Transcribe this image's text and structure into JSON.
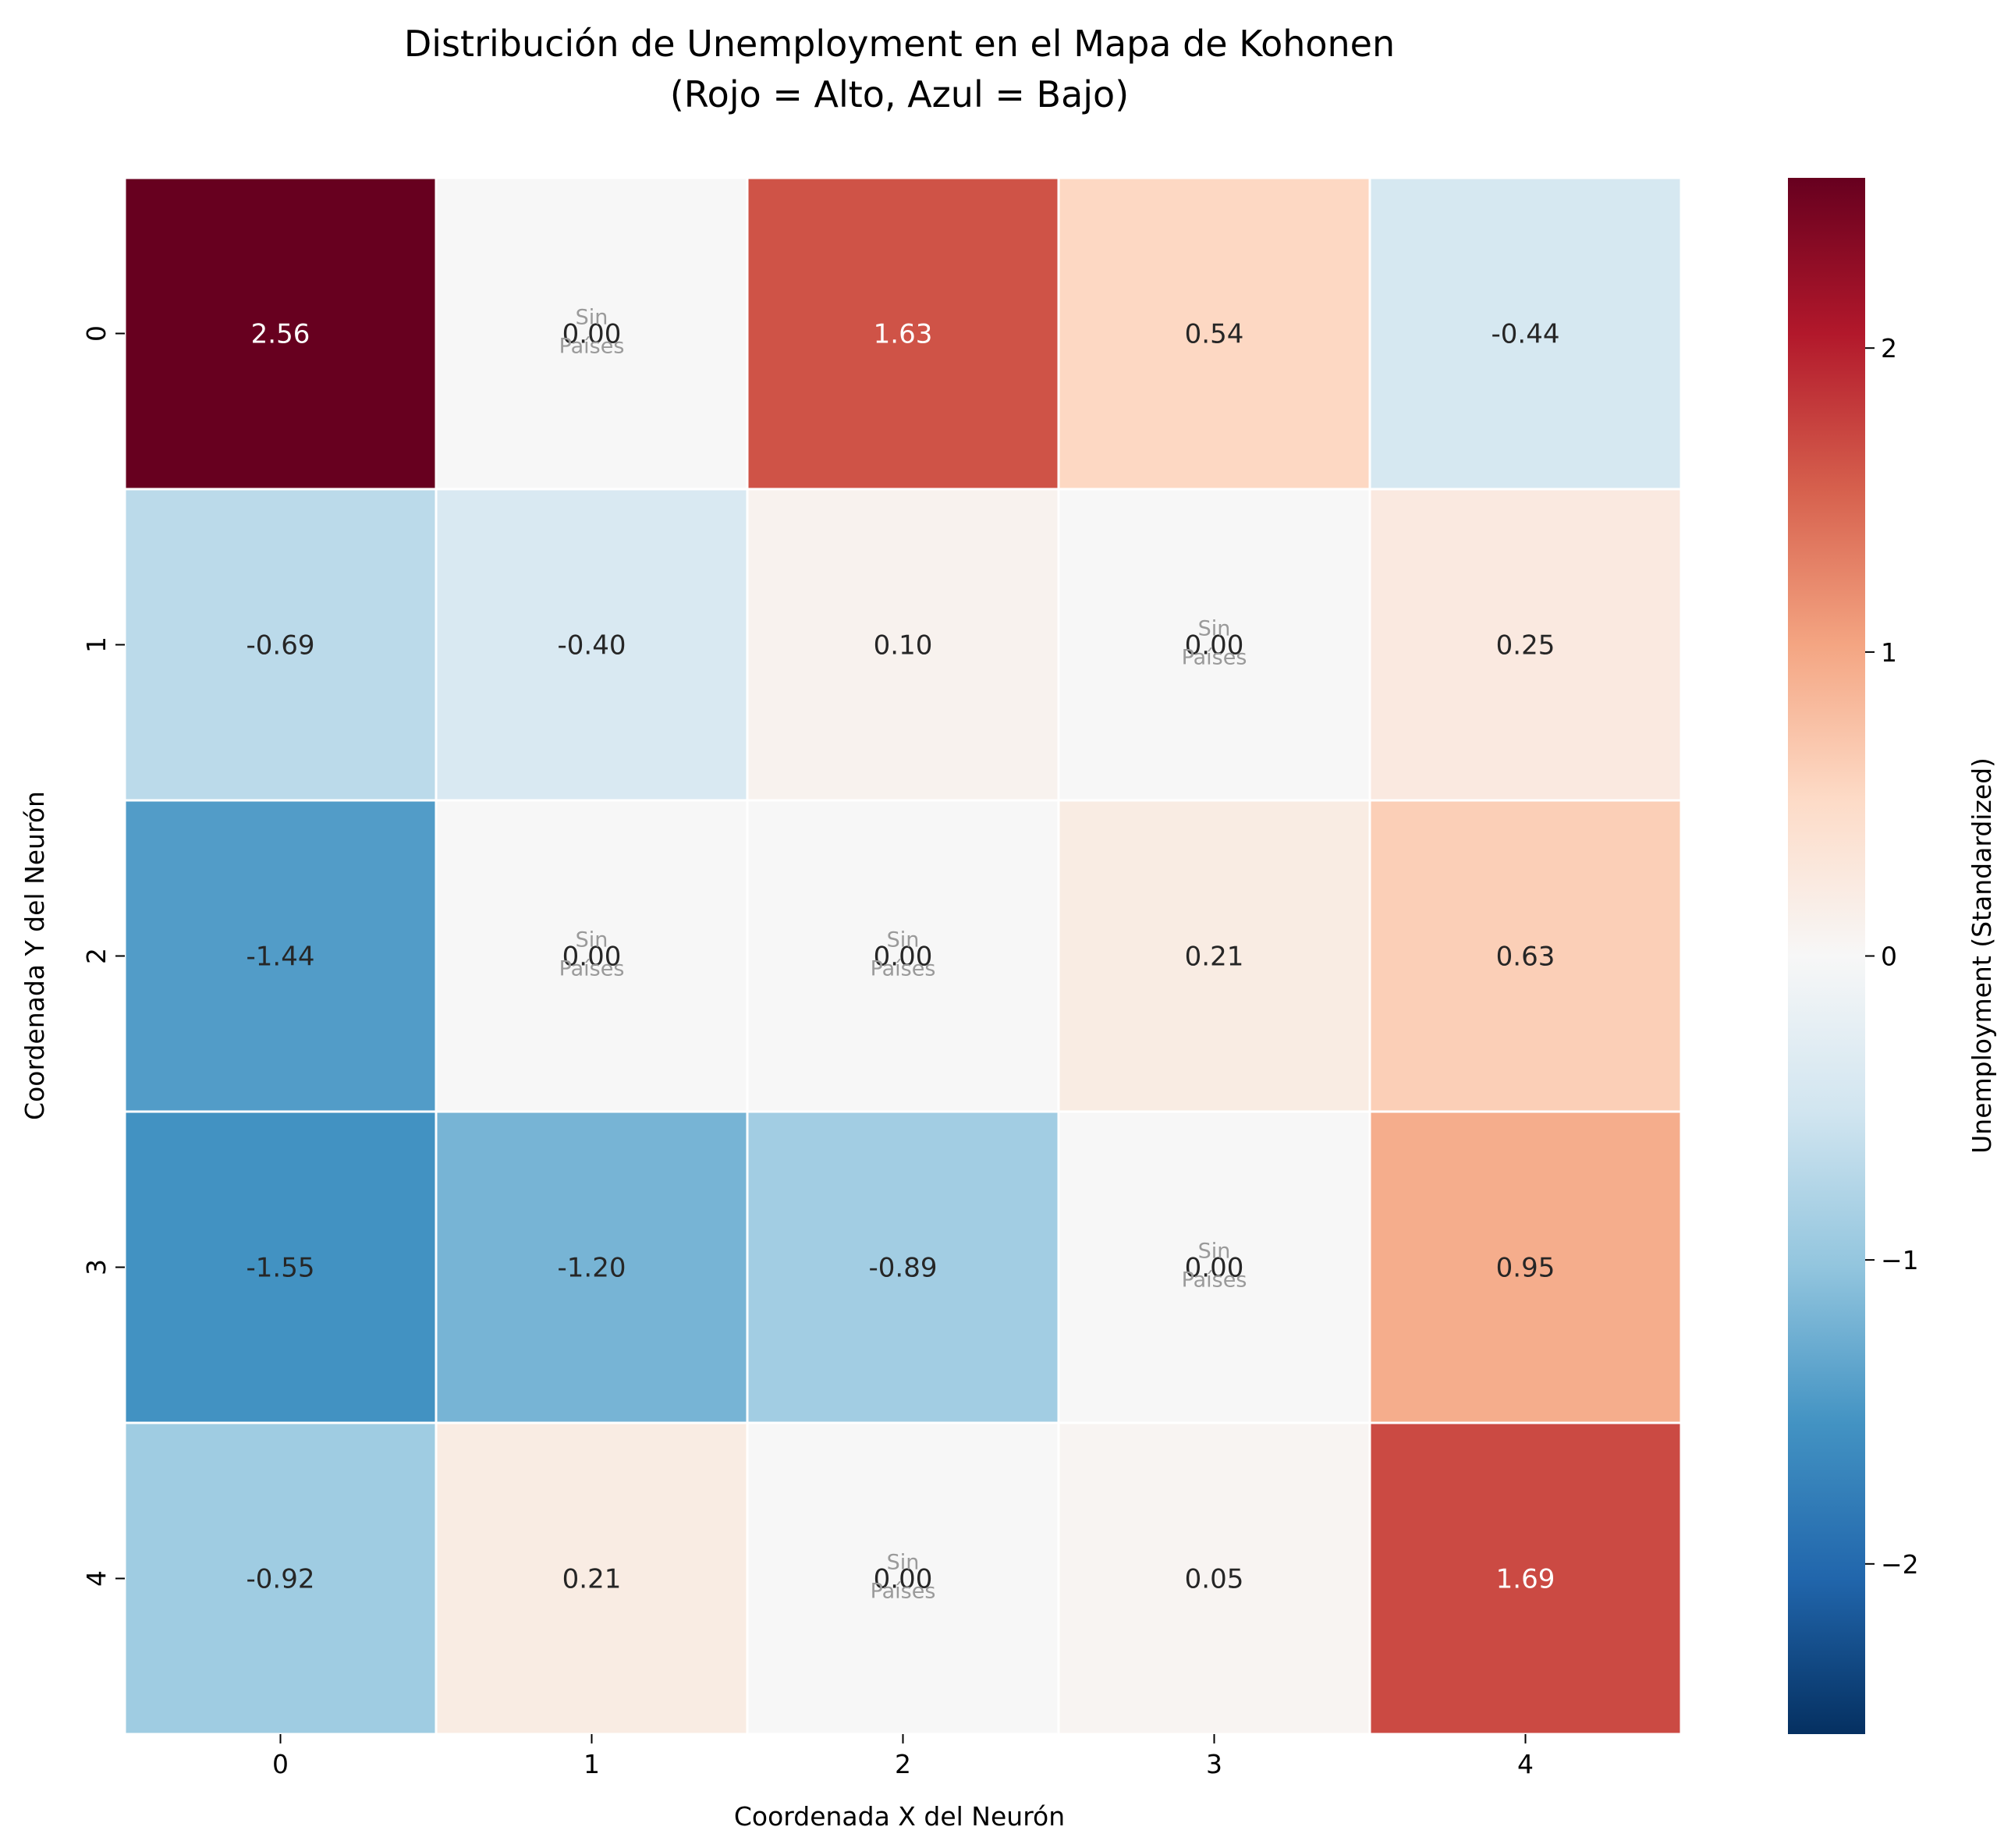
{
  "chart_data": {
    "type": "heatmap",
    "title": "Distribución de Unemployment en el Mapa de Kohonen",
    "subtitle": "(Rojo = Alto, Azul = Bajo)",
    "xlabel": "Coordenada X del Neurón",
    "ylabel": "Coordenada Y del Neurón",
    "colorbar_label": "Unemployment (Standardized)",
    "x_ticks": [
      "0",
      "1",
      "2",
      "3",
      "4"
    ],
    "y_ticks": [
      "0",
      "1",
      "2",
      "3",
      "4"
    ],
    "colorbar_ticks": [
      "2",
      "1",
      "0",
      "−1",
      "−2"
    ],
    "colorbar_tick_values": [
      2,
      1,
      0,
      -1,
      -2
    ],
    "vmin": -2.56,
    "vmax": 2.56,
    "colormap": "RdBu_r",
    "empty_label_line1": "Sin",
    "empty_label_line2": "Países",
    "values": [
      [
        2.56,
        0.0,
        1.63,
        0.54,
        -0.44
      ],
      [
        -0.69,
        -0.4,
        0.1,
        0.0,
        0.25
      ],
      [
        -1.44,
        0.0,
        0.0,
        0.21,
        0.63
      ],
      [
        -1.55,
        -1.2,
        -0.89,
        0.0,
        0.95
      ],
      [
        -0.92,
        0.21,
        0.0,
        0.05,
        1.69
      ]
    ],
    "labels": [
      [
        "2.56",
        "0.00",
        "1.63",
        "0.54",
        "-0.44"
      ],
      [
        "-0.69",
        "-0.40",
        "0.10",
        "0.00",
        "0.25"
      ],
      [
        "-1.44",
        "0.00",
        "0.00",
        "0.21",
        "0.63"
      ],
      [
        "-1.55",
        "-1.20",
        "-0.89",
        "0.00",
        "0.95"
      ],
      [
        "-0.92",
        "0.21",
        "0.00",
        "0.05",
        "1.69"
      ]
    ],
    "empty": [
      [
        false,
        true,
        false,
        false,
        false
      ],
      [
        false,
        false,
        false,
        true,
        false
      ],
      [
        false,
        true,
        true,
        false,
        false
      ],
      [
        false,
        false,
        false,
        true,
        false
      ],
      [
        false,
        false,
        true,
        false,
        false
      ]
    ]
  }
}
